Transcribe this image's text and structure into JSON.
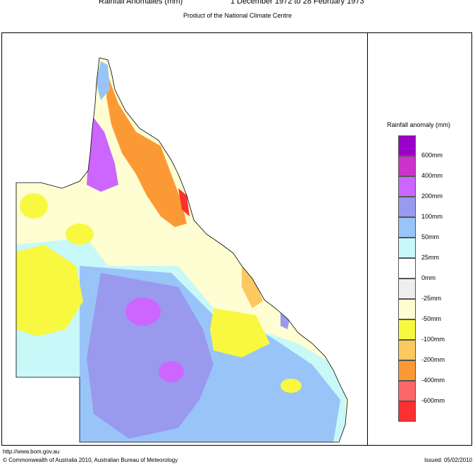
{
  "header": {
    "title": "Rainfall Anomalies (mm)",
    "period": "1 December 1972 to 28 February 1973",
    "subtitle": "Product of the National Climate Centre"
  },
  "legend": {
    "title": "Rainfall anomaly (mm)",
    "bins": [
      {
        "color": "#9a00c8"
      },
      {
        "color": "#cc33cc",
        "label": "600mm"
      },
      {
        "color": "#cc66ff",
        "label": "400mm"
      },
      {
        "color": "#9999ee",
        "label": "200mm"
      },
      {
        "color": "#99c4f8",
        "label": "100mm"
      },
      {
        "color": "#c8f8f8",
        "label": "50mm"
      },
      {
        "color": "#ffffff",
        "label": "25mm"
      },
      {
        "color": "#eeeeee",
        "label": "0mm"
      },
      {
        "color": "#fefed2",
        "label": "-25mm"
      },
      {
        "color": "#f8f840",
        "label": "-50mm"
      },
      {
        "color": "#fcc860",
        "label": "-100mm"
      },
      {
        "color": "#fb9a35",
        "label": "-200mm"
      },
      {
        "color": "#fc6868",
        "label": "-400mm"
      },
      {
        "color": "#fc3030",
        "label": "-600mm"
      }
    ]
  },
  "footer": {
    "url": "http://www.bom.gov.au",
    "copyright": "© Commonwealth of Australia 2010, Australian Bureau of Meteorology",
    "issued": "Issued: 05/02/2010"
  }
}
